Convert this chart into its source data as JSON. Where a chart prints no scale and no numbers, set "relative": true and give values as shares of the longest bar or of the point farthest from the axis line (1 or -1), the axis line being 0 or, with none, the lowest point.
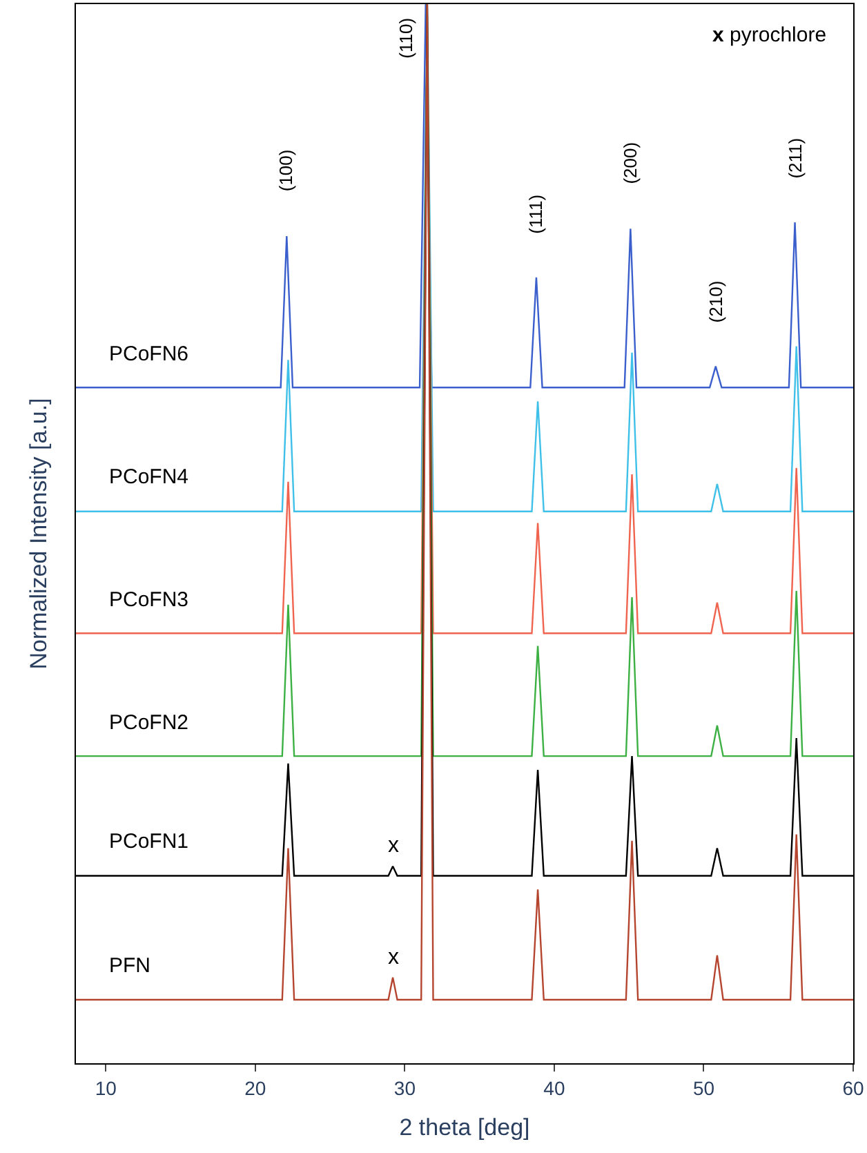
{
  "chart_data": {
    "type": "line",
    "relative": true,
    "xlabel": "2 theta [deg]",
    "ylabel": "Normalized Intensity [a.u.]",
    "xlim": [
      8,
      60
    ],
    "xticks": [
      10,
      20,
      30,
      40,
      50,
      60
    ],
    "legend": false,
    "marker": "none",
    "line_style": "solid",
    "series": [
      {
        "name": "PCoFN6",
        "color": "#3a5fcd",
        "x": [
          8,
          21.7,
          22.1,
          22.5,
          31.0,
          31.4,
          31.8,
          38.4,
          38.8,
          39.2,
          44.7,
          45.1,
          45.5,
          50.4,
          50.8,
          51.2,
          55.7,
          56.1,
          56.5,
          60
        ],
        "values": [
          0.638,
          0.638,
          0.781,
          0.638,
          0.638,
          1.0,
          0.638,
          0.638,
          0.742,
          0.638,
          0.638,
          0.788,
          0.638,
          0.638,
          0.658,
          0.638,
          0.638,
          0.794,
          0.638,
          0.638
        ]
      },
      {
        "name": "PCoFN4",
        "color": "#3fc0e8",
        "x": [
          8,
          21.8,
          22.2,
          22.6,
          31.1,
          31.5,
          31.9,
          38.5,
          38.9,
          39.3,
          44.8,
          45.2,
          45.6,
          50.5,
          50.9,
          51.3,
          55.8,
          56.2,
          56.6,
          60
        ],
        "values": [
          0.521,
          0.521,
          0.664,
          0.521,
          0.521,
          1.0,
          0.521,
          0.521,
          0.625,
          0.521,
          0.521,
          0.671,
          0.521,
          0.521,
          0.547,
          0.521,
          0.521,
          0.677,
          0.521,
          0.521
        ]
      },
      {
        "name": "PCoFN3",
        "color": "#f0644f",
        "x": [
          8,
          21.8,
          22.2,
          22.6,
          31.1,
          31.5,
          31.9,
          38.5,
          38.9,
          39.3,
          44.8,
          45.2,
          45.6,
          50.5,
          50.9,
          51.3,
          55.8,
          56.2,
          56.6,
          60
        ],
        "values": [
          0.406,
          0.406,
          0.549,
          0.406,
          0.406,
          1.0,
          0.406,
          0.406,
          0.51,
          0.406,
          0.406,
          0.556,
          0.406,
          0.406,
          0.435,
          0.406,
          0.406,
          0.562,
          0.406,
          0.406
        ]
      },
      {
        "name": "PCoFN2",
        "color": "#3cb043",
        "x": [
          8,
          21.8,
          22.2,
          22.6,
          31.1,
          31.5,
          31.9,
          38.5,
          38.9,
          39.3,
          44.8,
          45.2,
          45.6,
          50.5,
          50.9,
          51.3,
          55.8,
          56.2,
          56.6,
          60
        ],
        "values": [
          0.29,
          0.29,
          0.433,
          0.29,
          0.29,
          1.0,
          0.29,
          0.29,
          0.394,
          0.29,
          0.29,
          0.44,
          0.29,
          0.29,
          0.319,
          0.29,
          0.29,
          0.446,
          0.29,
          0.29
        ]
      },
      {
        "name": "PCoFN1",
        "color": "#000000",
        "x": [
          8,
          21.8,
          22.2,
          22.6,
          28.9,
          29.2,
          29.5,
          31.1,
          31.5,
          31.9,
          38.5,
          38.9,
          39.3,
          44.8,
          45.2,
          45.6,
          50.5,
          50.9,
          51.3,
          55.8,
          56.2,
          56.6,
          60
        ],
        "values": [
          0.177,
          0.177,
          0.283,
          0.177,
          0.177,
          0.186,
          0.177,
          0.177,
          1.0,
          0.177,
          0.177,
          0.277,
          0.177,
          0.177,
          0.29,
          0.177,
          0.177,
          0.203,
          0.177,
          0.177,
          0.307,
          0.177,
          0.177
        ]
      },
      {
        "name": "PFN",
        "color": "#b5452f",
        "x": [
          8,
          21.8,
          22.2,
          22.6,
          28.9,
          29.2,
          29.5,
          31.1,
          31.5,
          31.9,
          38.5,
          38.9,
          39.3,
          44.8,
          45.2,
          45.6,
          50.5,
          50.9,
          51.3,
          55.8,
          56.2,
          56.6,
          60
        ],
        "values": [
          0.06,
          0.06,
          0.203,
          0.06,
          0.06,
          0.081,
          0.06,
          0.06,
          1.0,
          0.06,
          0.06,
          0.164,
          0.06,
          0.06,
          0.21,
          0.06,
          0.06,
          0.102,
          0.06,
          0.06,
          0.216,
          0.06,
          0.06
        ]
      }
    ],
    "annotations": [
      {
        "text": "(100)",
        "x": 22.1,
        "y": 0.781
      },
      {
        "text": "(110)",
        "x": 31.4,
        "y": 1.0
      },
      {
        "text": "(111)",
        "x": 38.8,
        "y": 0.742
      },
      {
        "text": "(200)",
        "x": 45.1,
        "y": 0.788
      },
      {
        "text": "(210)",
        "x": 50.8,
        "y": 0.658
      },
      {
        "text": "(211)",
        "x": 56.1,
        "y": 0.794
      },
      {
        "text": "x",
        "x": 29.2,
        "y": 0.186
      },
      {
        "text": "x",
        "x": 29.2,
        "y": 0.081
      },
      "x  pyrochlore"
    ]
  }
}
